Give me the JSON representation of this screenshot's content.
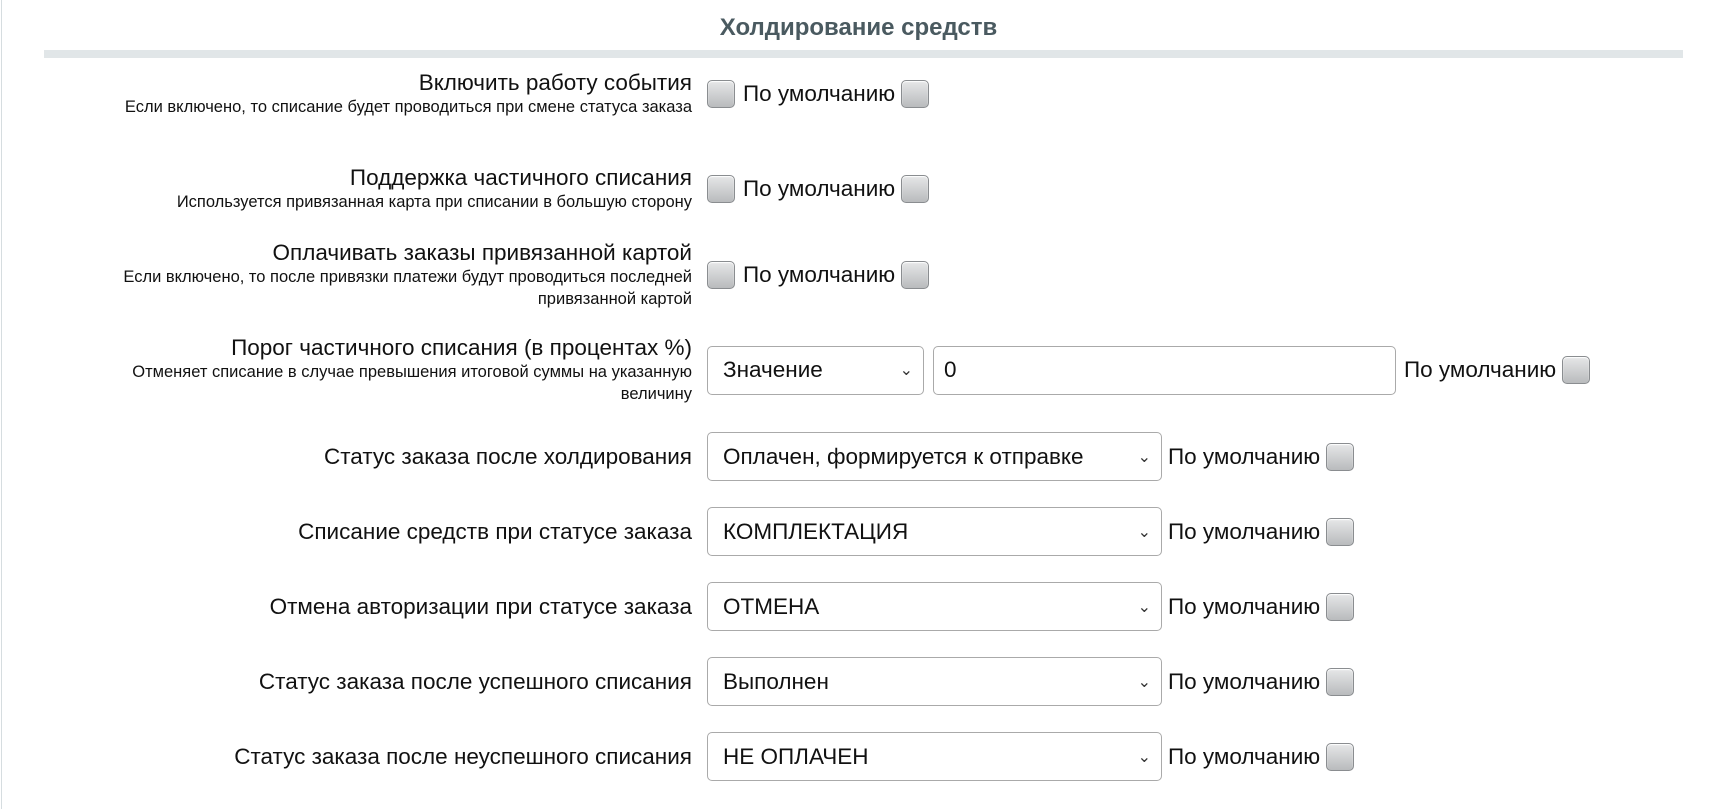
{
  "section_title": "Холдирование средств",
  "default_label": "По умолчанию",
  "rows": [
    {
      "label": "Включить работу события",
      "hint": "Если включено, то списание будет проводиться при смене статуса заказа",
      "checked": false,
      "default_checked": false
    },
    {
      "label": "Поддержка частичного списания",
      "hint": "Используется привязанная карта при списании в большую сторону",
      "checked": false,
      "default_checked": false
    },
    {
      "label": "Оплачивать заказы привязанной картой",
      "hint": "Если включено, то после привязки платежи будут проводиться последней привязанной картой",
      "checked": false,
      "default_checked": false
    },
    {
      "label": "Порог частичного списания (в процентах %)",
      "hint": "Отменяет списание в случае превышения итоговой суммы на указанную величину",
      "select": "Значение",
      "value": "0",
      "default_checked": false
    },
    {
      "label": "Статус заказа после холдирования",
      "select": "Оплачен, формируется к отправке",
      "default_checked": false
    },
    {
      "label": "Списание средств при статусе заказа",
      "select": "КОМПЛЕКТАЦИЯ",
      "default_checked": false
    },
    {
      "label": "Отмена авторизации при статусе заказа",
      "select": "ОТМЕНА",
      "default_checked": false
    },
    {
      "label": "Статус заказа после успешного списания",
      "select": "Выполнен",
      "default_checked": false
    },
    {
      "label": "Статус заказа после неуспешного списания",
      "select": "НЕ ОПЛАЧЕН",
      "default_checked": false
    }
  ]
}
